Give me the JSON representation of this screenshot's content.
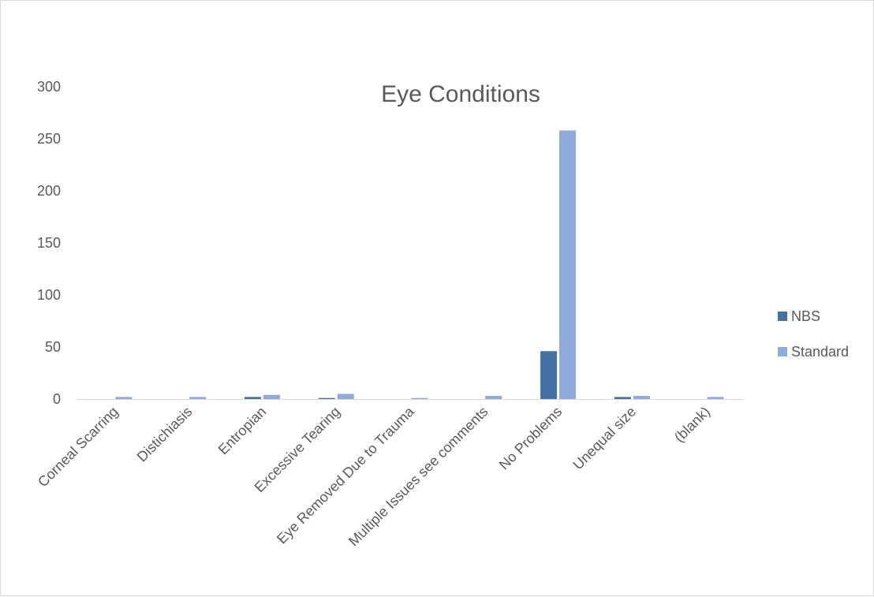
{
  "chart_data": {
    "type": "bar",
    "title": "Eye Conditions",
    "categories": [
      "Corneal Scarring",
      "Distichiasis",
      "Entropian",
      "Excessive Tearing",
      "Eye Removed Due to Trauma",
      "Multiple Issues see comments",
      "No Problems",
      "Unequal size",
      "(blank)"
    ],
    "series": [
      {
        "name": "NBS",
        "color": "#4472a4",
        "values": [
          0,
          0,
          2,
          1,
          0,
          0,
          46,
          2,
          0
        ]
      },
      {
        "name": "Standard",
        "color": "#8faadc",
        "values": [
          2,
          2,
          4,
          5,
          1,
          3,
          258,
          3,
          2
        ]
      }
    ],
    "yticks": [
      0,
      50,
      100,
      150,
      200,
      250,
      300
    ],
    "ylim": [
      0,
      300
    ],
    "grid": false,
    "legend_position": "right"
  }
}
